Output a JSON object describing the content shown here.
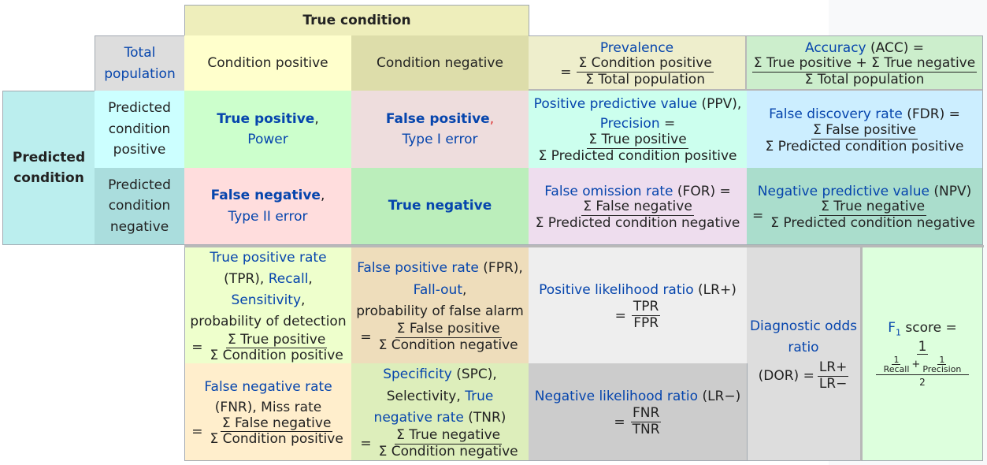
{
  "header": {
    "true_condition": "True condition",
    "predicted_condition": "Predicted condition"
  },
  "total_population": "Total population",
  "columns": {
    "condition_positive": "Condition positive",
    "condition_negative": "Condition negative"
  },
  "rows": {
    "predicted_positive": "Predicted condition positive",
    "predicted_negative": "Predicted condition negative"
  },
  "prevalence": {
    "name": "Prevalence",
    "eq": "=",
    "num": "Σ Condition positive",
    "den": "Σ Total population"
  },
  "accuracy": {
    "name": "Accuracy",
    "abbr": "(ACC) =",
    "num": "Σ True positive + Σ True negative",
    "den": "Σ Total population"
  },
  "true_positive": {
    "name": "True positive",
    "comma": ",",
    "alt": "Power"
  },
  "false_positive": {
    "name": "False positive",
    "comma": ",",
    "alt": "Type I error"
  },
  "false_negative": {
    "name": "False negative",
    "comma": ",",
    "alt": "Type II error"
  },
  "true_negative": {
    "name": "True negative"
  },
  "ppv": {
    "name": "Positive predictive value",
    "abbr": "(PPV),",
    "alt": "Precision",
    "alt_eq": "=",
    "num": "Σ True positive",
    "den": "Σ Predicted condition positive"
  },
  "fdr": {
    "name": "False discovery rate",
    "abbr": "(FDR) =",
    "num": "Σ False positive",
    "den": "Σ Predicted condition positive"
  },
  "for": {
    "name": "False omission rate",
    "abbr": "(FOR) =",
    "num": "Σ False negative",
    "den": "Σ Predicted condition negative"
  },
  "npv": {
    "name": "Negative predictive value",
    "abbr": "(NPV)",
    "eq": "=",
    "num": "Σ True negative",
    "den": "Σ Predicted condition negative"
  },
  "tpr": {
    "name": "True positive rate",
    "abbr": "(TPR),",
    "alt1": "Recall",
    "comma1": ",",
    "alt2": "Sensitivity",
    "comma2": ",",
    "extra": "probability of detection",
    "eq": "=",
    "num": "Σ True positive",
    "den": "Σ Condition positive"
  },
  "fpr": {
    "name": "False positive rate",
    "abbr": "(FPR),",
    "alt1": "Fall-out",
    "comma1": ",",
    "extra": "probability of false alarm",
    "eq": "=",
    "num": "Σ False positive",
    "den": "Σ Condition negative"
  },
  "lr_pos": {
    "name": "Positive likelihood ratio",
    "abbr": "(LR+)",
    "eq": "=",
    "num": "TPR",
    "den": "FPR"
  },
  "lr_neg": {
    "name": "Negative likelihood ratio",
    "abbr": "(LR−)",
    "eq": "=",
    "num": "FNR",
    "den": "TNR"
  },
  "dor": {
    "name": "Diagnostic odds ratio",
    "abbr": "(DOR) =",
    "num": "LR+",
    "den": "LR−"
  },
  "f1": {
    "name": "F",
    "sub": "1",
    "suffix": "score =",
    "num": "1",
    "in1_num": "1",
    "in1_den": "Recall",
    "plus": "+",
    "in2_num": "1",
    "in2_den": "Precision",
    "den": "2"
  },
  "fnr": {
    "name": "False negative rate",
    "abbr": "(FNR), Miss rate",
    "eq": "=",
    "num": "Σ False negative",
    "den": "Σ Condition positive"
  },
  "spc": {
    "name": "Specificity",
    "abbr": "(SPC),",
    "extra": "Selectivity,",
    "alt": "True negative rate",
    "abbr2": "(TNR)",
    "eq": "=",
    "num": "Σ True negative",
    "den": "Σ Condition negative"
  },
  "colors": {
    "link": "#0645ad",
    "border": "#a2a9b1",
    "header_bg": "#eeeebb",
    "total_bg": "#dddddd",
    "cond_pos_bg": "#ffffcc",
    "cond_neg_bg": "#ddddaa",
    "prev_bg": "#eeeecc",
    "acc_bg": "#cceecc",
    "pred_bg": "#bbeeee",
    "pred_pos_bg": "#ccffff",
    "pred_neg_bg": "#aadddd",
    "tp_bg": "#ccffcc",
    "fp_bg": "#eedddd",
    "fn_bg": "#ffdddd",
    "tn_bg": "#bbeebb",
    "ppv_bg": "#ccffee",
    "fdr_bg": "#cceeff",
    "for_bg": "#eeddee",
    "npv_bg": "#aaddcc",
    "tpr_bg": "#eeffcc",
    "fpr_bg": "#eeddbb",
    "lrp_bg": "#eeeeee",
    "lrn_bg": "#cccccc",
    "dor_bg": "#dddddd",
    "f1_bg": "#ddffdd",
    "fnr_bg": "#ffeecc",
    "spc_bg": "#ddeebb"
  }
}
